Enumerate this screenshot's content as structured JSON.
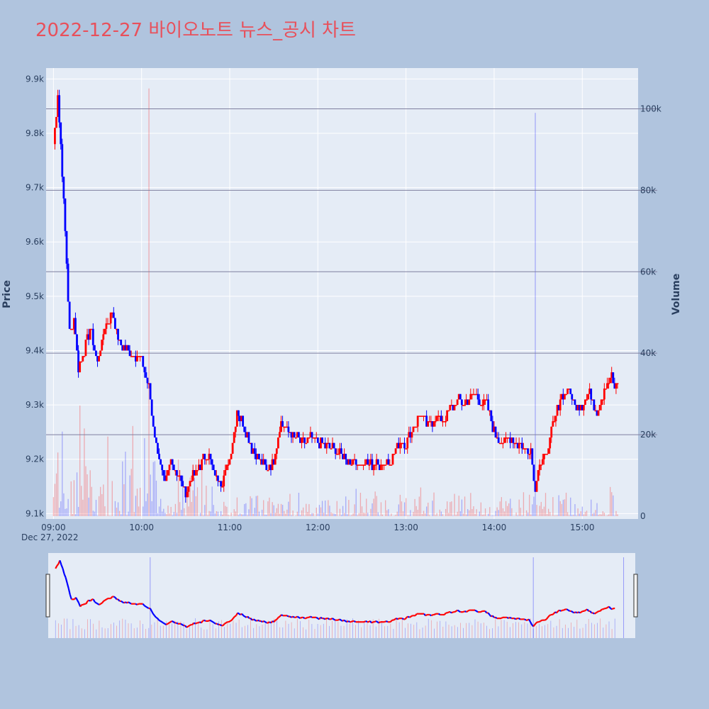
{
  "title": "2022-12-27 바이오노트 뉴스_공시 차트",
  "colors": {
    "background": "#b0c4de",
    "plot_bg": "#e5ecf6",
    "up": "#ff0000",
    "down": "#0000ff",
    "title": "#e8505b",
    "grid": "#ffffff",
    "vol_grid": "#7f7f9f"
  },
  "chart_data": {
    "type": "candlestick",
    "x_tick_labels": [
      "09:00",
      "10:00",
      "11:00",
      "12:00",
      "13:00",
      "14:00",
      "15:00"
    ],
    "x_date_label": "Dec 27, 2022",
    "y_label": "Price",
    "y_tick_labels": [
      "9.1k",
      "9.2k",
      "9.3k",
      "9.4k",
      "9.5k",
      "9.6k",
      "9.7k",
      "9.8k",
      "9.9k"
    ],
    "y_range": [
      9090,
      9920
    ],
    "y2_label": "Volume",
    "y2_tick_labels": [
      "0",
      "20k",
      "40k",
      "60k",
      "80k",
      "100k"
    ],
    "y2_range": [
      0,
      110000
    ],
    "legend": "none",
    "rangeslider": true,
    "price_path": [
      [
        "09:00",
        9780
      ],
      [
        "09:03",
        9870
      ],
      [
        "09:06",
        9730
      ],
      [
        "09:08",
        9620
      ],
      [
        "09:11",
        9430
      ],
      [
        "09:14",
        9460
      ],
      [
        "09:17",
        9370
      ],
      [
        "09:21",
        9400
      ],
      [
        "09:25",
        9440
      ],
      [
        "09:30",
        9380
      ],
      [
        "09:35",
        9440
      ],
      [
        "09:40",
        9470
      ],
      [
        "09:45",
        9410
      ],
      [
        "09:52",
        9400
      ],
      [
        "10:00",
        9380
      ],
      [
        "10:05",
        9330
      ],
      [
        "10:08",
        9260
      ],
      [
        "10:12",
        9200
      ],
      [
        "10:16",
        9150
      ],
      [
        "10:20",
        9200
      ],
      [
        "10:25",
        9170
      ],
      [
        "10:30",
        9140
      ],
      [
        "10:35",
        9170
      ],
      [
        "10:40",
        9190
      ],
      [
        "10:45",
        9210
      ],
      [
        "10:50",
        9170
      ],
      [
        "10:55",
        9160
      ],
      [
        "11:00",
        9200
      ],
      [
        "11:05",
        9290
      ],
      [
        "11:10",
        9260
      ],
      [
        "11:15",
        9220
      ],
      [
        "11:20",
        9200
      ],
      [
        "11:25",
        9180
      ],
      [
        "11:30",
        9200
      ],
      [
        "11:35",
        9270
      ],
      [
        "11:40",
        9250
      ],
      [
        "11:45",
        9240
      ],
      [
        "11:50",
        9230
      ],
      [
        "11:55",
        9240
      ],
      [
        "12:00",
        9230
      ],
      [
        "12:10",
        9220
      ],
      [
        "12:15",
        9210
      ],
      [
        "12:20",
        9200
      ],
      [
        "12:30",
        9190
      ],
      [
        "12:40",
        9190
      ],
      [
        "12:50",
        9200
      ],
      [
        "12:55",
        9230
      ],
      [
        "13:00",
        9230
      ],
      [
        "13:05",
        9260
      ],
      [
        "13:10",
        9280
      ],
      [
        "13:15",
        9260
      ],
      [
        "13:20",
        9280
      ],
      [
        "13:25",
        9270
      ],
      [
        "13:30",
        9290
      ],
      [
        "13:35",
        9310
      ],
      [
        "13:40",
        9300
      ],
      [
        "13:45",
        9320
      ],
      [
        "13:50",
        9310
      ],
      [
        "13:55",
        9300
      ],
      [
        "14:00",
        9250
      ],
      [
        "14:05",
        9230
      ],
      [
        "14:10",
        9240
      ],
      [
        "14:15",
        9230
      ],
      [
        "14:20",
        9220
      ],
      [
        "14:25",
        9220
      ],
      [
        "14:28",
        9140
      ],
      [
        "14:30",
        9190
      ],
      [
        "14:35",
        9200
      ],
      [
        "14:40",
        9260
      ],
      [
        "14:45",
        9310
      ],
      [
        "14:50",
        9330
      ],
      [
        "14:55",
        9300
      ],
      [
        "15:00",
        9300
      ],
      [
        "15:05",
        9320
      ],
      [
        "15:10",
        9290
      ],
      [
        "15:15",
        9330
      ],
      [
        "15:20",
        9350
      ],
      [
        "15:22",
        9330
      ],
      [
        "15:24",
        9340
      ]
    ],
    "volume_spikes": [
      [
        "10:05",
        105000
      ],
      [
        "14:28",
        99000
      ],
      [
        "15:30",
        105000
      ]
    ]
  }
}
